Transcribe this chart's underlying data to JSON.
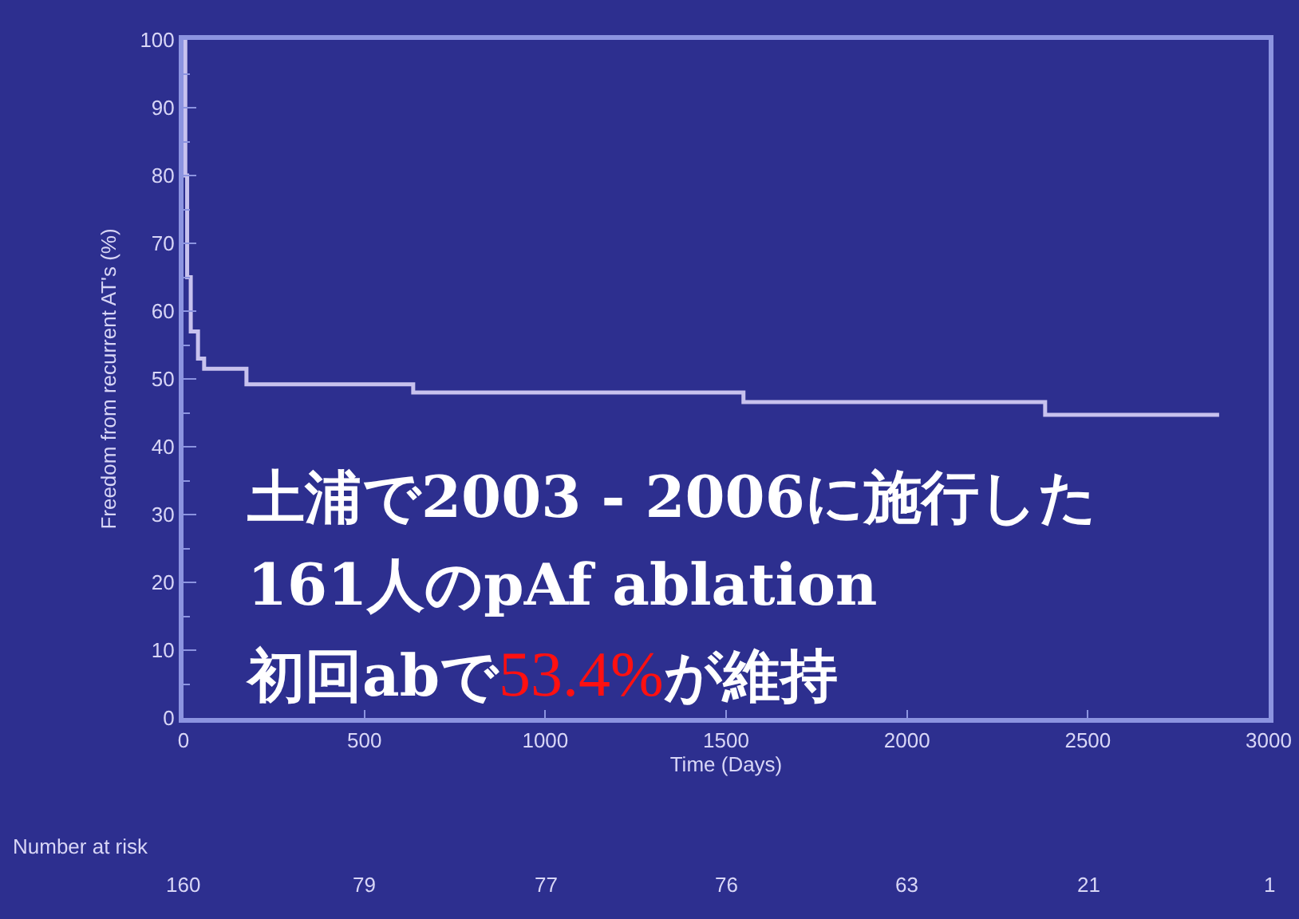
{
  "chart_data": {
    "type": "step",
    "xlabel": "Time (Days)",
    "ylabel": "Freedom from recurrent AT's (%)",
    "series": [
      {
        "color": "#c8c2ee",
        "x": [
          0,
          5,
          10,
          20,
          40,
          57,
          174,
          635,
          1548,
          2382,
          2863
        ],
        "values": [
          100,
          80,
          65,
          57,
          53,
          51.5,
          49.2,
          48,
          46.6,
          44.7,
          44.7
        ]
      }
    ],
    "xlim": [
      0,
      3000
    ],
    "xticks": [
      0,
      500,
      1000,
      1500,
      2000,
      2500,
      3000
    ],
    "ylim": [
      0,
      100
    ],
    "yticks": [
      0,
      10,
      20,
      30,
      40,
      50,
      60,
      70,
      80,
      90,
      100
    ],
    "marker": "none",
    "line_style": "solid",
    "annotations": [
      "土浦で2003 - 2006に施行した",
      "161人のpAf ablation",
      "初回abで",
      "53.4%",
      "が維持",
      "Number at risk",
      "160",
      "79",
      "77",
      "76",
      "63",
      "21",
      "1"
    ]
  }
}
